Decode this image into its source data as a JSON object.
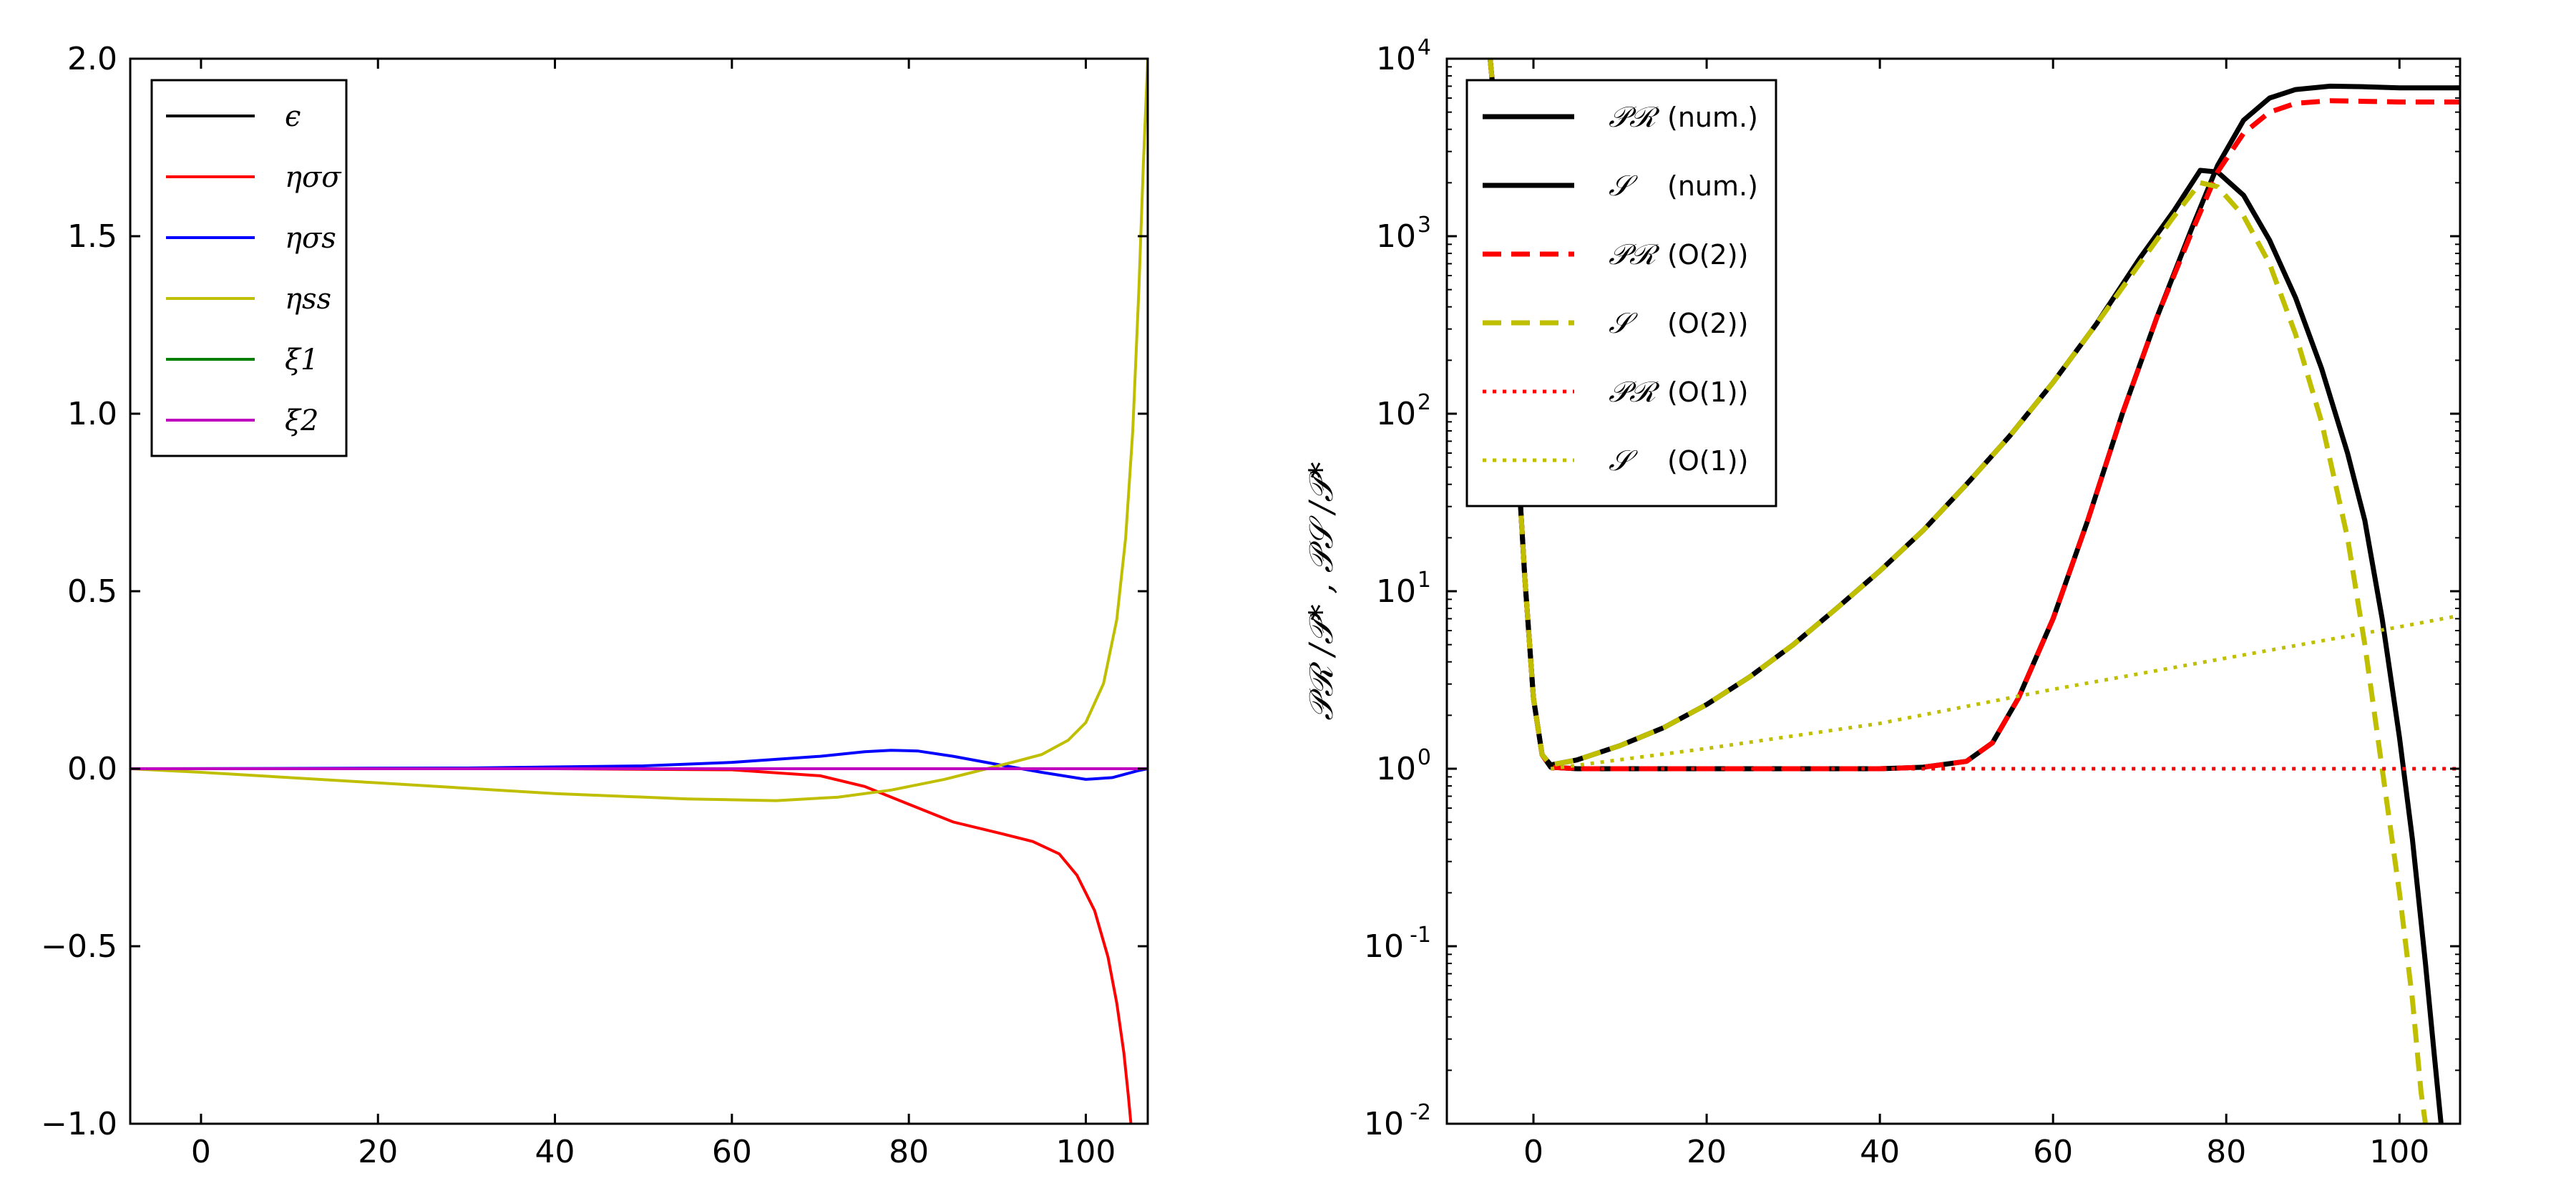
{
  "chart_data": [
    {
      "type": "line",
      "title": "",
      "xlabel": "",
      "ylabel": "",
      "xlim": [
        -8,
        107
      ],
      "ylim": [
        -1.0,
        2.0
      ],
      "xticks": [
        0,
        20,
        40,
        60,
        80,
        100
      ],
      "yticks": [
        -1.0,
        -0.5,
        0.0,
        0.5,
        1.0,
        1.5,
        2.0
      ],
      "ytick_labels": [
        "−1.0",
        "−0.5",
        "0.0",
        "0.5",
        "1.0",
        "1.5",
        "2.0"
      ],
      "xtick_labels": [
        "0",
        "20",
        "40",
        "60",
        "80",
        "100"
      ],
      "legend_position": "top-left",
      "series": [
        {
          "name": "ϵ",
          "color": "#000000",
          "style": "solid",
          "points": [
            [
              -8,
              0
            ],
            [
              107,
              0
            ]
          ]
        },
        {
          "name": "ησσ",
          "color": "#ff0000",
          "style": "solid",
          "points": [
            [
              -8,
              0
            ],
            [
              40,
              0
            ],
            [
              60,
              -0.003
            ],
            [
              70,
              -0.02
            ],
            [
              75,
              -0.05
            ],
            [
              80,
              -0.1
            ],
            [
              85,
              -0.15
            ],
            [
              90,
              -0.18
            ],
            [
              94,
              -0.205
            ],
            [
              97,
              -0.24
            ],
            [
              99,
              -0.3
            ],
            [
              101,
              -0.4
            ],
            [
              102.5,
              -0.53
            ],
            [
              103.5,
              -0.66
            ],
            [
              104.3,
              -0.8
            ],
            [
              104.8,
              -0.92
            ],
            [
              105.1,
              -1.0
            ]
          ]
        },
        {
          "name": "ησs",
          "color": "#0000ff",
          "style": "solid",
          "points": [
            [
              -8,
              0
            ],
            [
              30,
              0.002
            ],
            [
              50,
              0.008
            ],
            [
              60,
              0.018
            ],
            [
              70,
              0.035
            ],
            [
              75,
              0.048
            ],
            [
              78,
              0.052
            ],
            [
              81,
              0.05
            ],
            [
              85,
              0.035
            ],
            [
              90,
              0.012
            ],
            [
              95,
              -0.01
            ],
            [
              100,
              -0.03
            ],
            [
              103,
              -0.025
            ],
            [
              106,
              -0.005
            ],
            [
              107,
              0
            ]
          ]
        },
        {
          "name": "ηss",
          "color": "#bfbf00",
          "style": "solid",
          "points": [
            [
              -8,
              0
            ],
            [
              0,
              -0.01
            ],
            [
              20,
              -0.04
            ],
            [
              40,
              -0.07
            ],
            [
              55,
              -0.085
            ],
            [
              65,
              -0.09
            ],
            [
              72,
              -0.08
            ],
            [
              78,
              -0.06
            ],
            [
              84,
              -0.03
            ],
            [
              88,
              -0.005
            ],
            [
              92,
              0.02
            ],
            [
              95,
              0.04
            ],
            [
              98,
              0.08
            ],
            [
              100,
              0.13
            ],
            [
              102,
              0.24
            ],
            [
              103.5,
              0.42
            ],
            [
              104.5,
              0.65
            ],
            [
              105.3,
              0.95
            ],
            [
              106,
              1.35
            ],
            [
              106.5,
              1.7
            ],
            [
              107,
              2.0
            ]
          ]
        },
        {
          "name": "ξ1",
          "color": "#007f00",
          "style": "solid",
          "points": [
            [
              -8,
              0
            ],
            [
              107,
              0
            ]
          ]
        },
        {
          "name": "ξ2",
          "color": "#bf00bf",
          "style": "solid",
          "points": [
            [
              -8,
              0
            ],
            [
              107,
              0
            ]
          ]
        }
      ]
    },
    {
      "type": "line",
      "yscale": "log",
      "title": "",
      "xlabel": "",
      "ylabel": "𝒫ℛ /𝒫* ,  𝒫𝒮 /𝒫*",
      "xlim": [
        -10,
        107
      ],
      "ylim": [
        0.01,
        10000
      ],
      "xticks": [
        0,
        20,
        40,
        60,
        80,
        100
      ],
      "xtick_labels": [
        "0",
        "20",
        "40",
        "60",
        "80",
        "100"
      ],
      "yticks": [
        0.01,
        0.1,
        1,
        10,
        100,
        1000,
        10000
      ],
      "ytick_bases": [
        "10",
        "10",
        "10",
        "10",
        "10",
        "10",
        "10"
      ],
      "ytick_exponents": [
        "-2",
        "-1",
        "0",
        "1",
        "2",
        "3",
        "4"
      ],
      "legend_position": "top-left",
      "series": [
        {
          "name": "𝒫ℛ",
          "suffix": "(num.)",
          "color": "#000000",
          "style": "solid",
          "width": 7,
          "points": [
            [
              -5,
              10000
            ],
            [
              -4,
              3000
            ],
            [
              -3,
              500
            ],
            [
              -2,
              80
            ],
            [
              -1,
              12
            ],
            [
              0,
              2.5
            ],
            [
              1,
              1.2
            ],
            [
              2,
              1.02
            ],
            [
              5,
              1.0
            ],
            [
              20,
              1.0
            ],
            [
              40,
              1.0
            ],
            [
              45,
              1.02
            ],
            [
              50,
              1.1
            ],
            [
              53,
              1.4
            ],
            [
              56,
              2.5
            ],
            [
              60,
              7
            ],
            [
              64,
              25
            ],
            [
              68,
              100
            ],
            [
              72,
              350
            ],
            [
              76,
              1100
            ],
            [
              79,
              2500
            ],
            [
              82,
              4500
            ],
            [
              85,
              6000
            ],
            [
              88,
              6700
            ],
            [
              92,
              7000
            ],
            [
              96,
              6950
            ],
            [
              100,
              6850
            ],
            [
              104,
              6850
            ],
            [
              107,
              6850
            ]
          ]
        },
        {
          "name": "𝒮",
          "suffix": "(num.)",
          "color": "#000000",
          "style": "solid",
          "width": 7,
          "points": [
            [
              -5,
              10000
            ],
            [
              -4,
              3000
            ],
            [
              -3,
              500
            ],
            [
              -2,
              80
            ],
            [
              -1,
              12
            ],
            [
              0,
              2.5
            ],
            [
              1,
              1.2
            ],
            [
              2,
              1.05
            ],
            [
              5,
              1.12
            ],
            [
              10,
              1.35
            ],
            [
              15,
              1.7
            ],
            [
              20,
              2.3
            ],
            [
              25,
              3.3
            ],
            [
              30,
              5
            ],
            [
              35,
              8
            ],
            [
              40,
              13
            ],
            [
              45,
              22
            ],
            [
              50,
              40
            ],
            [
              55,
              75
            ],
            [
              60,
              150
            ],
            [
              65,
              320
            ],
            [
              70,
              750
            ],
            [
              74,
              1400
            ],
            [
              77,
              2350
            ],
            [
              79,
              2300
            ],
            [
              82,
              1700
            ],
            [
              85,
              950
            ],
            [
              88,
              450
            ],
            [
              91,
              180
            ],
            [
              94,
              60
            ],
            [
              96,
              25
            ],
            [
              98,
              7
            ],
            [
              100,
              1.5
            ],
            [
              101.5,
              0.4
            ],
            [
              103,
              0.08
            ],
            [
              104,
              0.025
            ],
            [
              104.8,
              0.01
            ]
          ]
        },
        {
          "name": "𝒫ℛ",
          "suffix": "(O(2))",
          "color": "#ff0000",
          "style": "dashed",
          "width": 7,
          "points": [
            [
              -5,
              10000
            ],
            [
              -4,
              3000
            ],
            [
              -3,
              500
            ],
            [
              -2,
              80
            ],
            [
              -1,
              12
            ],
            [
              0,
              2.5
            ],
            [
              1,
              1.2
            ],
            [
              2,
              1.02
            ],
            [
              5,
              1.0
            ],
            [
              20,
              1.0
            ],
            [
              40,
              1.0
            ],
            [
              45,
              1.02
            ],
            [
              50,
              1.1
            ],
            [
              53,
              1.4
            ],
            [
              56,
              2.5
            ],
            [
              60,
              7
            ],
            [
              64,
              25
            ],
            [
              68,
              100
            ],
            [
              72,
              350
            ],
            [
              76,
              1050
            ],
            [
              79,
              2300
            ],
            [
              82,
              3800
            ],
            [
              85,
              5000
            ],
            [
              88,
              5600
            ],
            [
              92,
              5800
            ],
            [
              96,
              5750
            ],
            [
              100,
              5700
            ],
            [
              104,
              5700
            ],
            [
              107,
              5700
            ]
          ]
        },
        {
          "name": "𝒮",
          "suffix": "(O(2))",
          "color": "#bfbf00",
          "style": "dashed",
          "width": 7,
          "points": [
            [
              -5,
              10000
            ],
            [
              -4,
              3000
            ],
            [
              -3,
              500
            ],
            [
              -2,
              80
            ],
            [
              -1,
              12
            ],
            [
              0,
              2.5
            ],
            [
              1,
              1.2
            ],
            [
              2,
              1.05
            ],
            [
              5,
              1.12
            ],
            [
              10,
              1.35
            ],
            [
              15,
              1.7
            ],
            [
              20,
              2.3
            ],
            [
              25,
              3.3
            ],
            [
              30,
              5
            ],
            [
              35,
              8
            ],
            [
              40,
              13
            ],
            [
              45,
              22
            ],
            [
              50,
              40
            ],
            [
              55,
              75
            ],
            [
              60,
              150
            ],
            [
              65,
              320
            ],
            [
              70,
              700
            ],
            [
              74,
              1300
            ],
            [
              77,
              2000
            ],
            [
              79,
              1900
            ],
            [
              82,
              1300
            ],
            [
              85,
              700
            ],
            [
              88,
              280
            ],
            [
              91,
              90
            ],
            [
              94,
              20
            ],
            [
              96,
              5
            ],
            [
              98,
              1
            ],
            [
              100,
              0.2
            ],
            [
              101.5,
              0.05
            ],
            [
              102.5,
              0.015
            ],
            [
              103,
              0.01
            ]
          ]
        },
        {
          "name": "𝒫ℛ",
          "suffix": "(O(1))",
          "color": "#ff0000",
          "style": "dotted",
          "width": 5,
          "points": [
            [
              2,
              1.0
            ],
            [
              107,
              1.0
            ]
          ]
        },
        {
          "name": "𝒮",
          "suffix": "(O(1))",
          "color": "#bfbf00",
          "style": "dotted",
          "width": 5,
          "points": [
            [
              2,
              1.0
            ],
            [
              20,
              1.3
            ],
            [
              40,
              1.8
            ],
            [
              60,
              2.8
            ],
            [
              80,
              4.2
            ],
            [
              100,
              6.3
            ],
            [
              107,
              7.3
            ]
          ]
        }
      ]
    }
  ]
}
